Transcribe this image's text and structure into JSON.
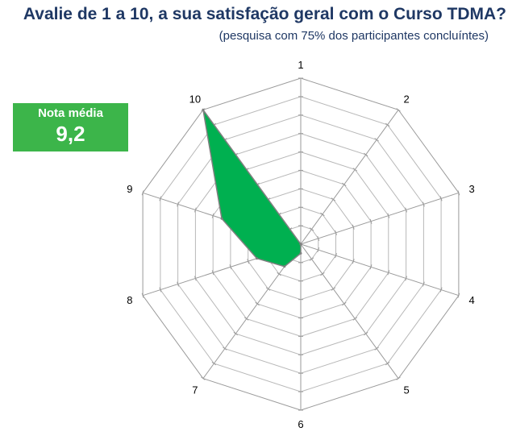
{
  "chart_data": {
    "type": "radar",
    "title": "Avalie de 1 a 10, a sua satisfação geral com o Curso TDMA?",
    "subtitle": "(pesquisa com 75% dos participantes concluíntes)",
    "categories": [
      "1",
      "2",
      "3",
      "4",
      "5",
      "6",
      "7",
      "8",
      "9",
      "10"
    ],
    "series": [
      {
        "values": [
          0,
          0,
          0,
          0,
          0,
          0.5,
          1.5,
          2.5,
          4.5,
          9
        ],
        "color": "#00b050"
      }
    ],
    "rmax": 9,
    "rings": 9,
    "grid": true,
    "legend": "none"
  },
  "badge": {
    "label": "Nota média",
    "value": "9,2",
    "color": "#3cb54a"
  }
}
